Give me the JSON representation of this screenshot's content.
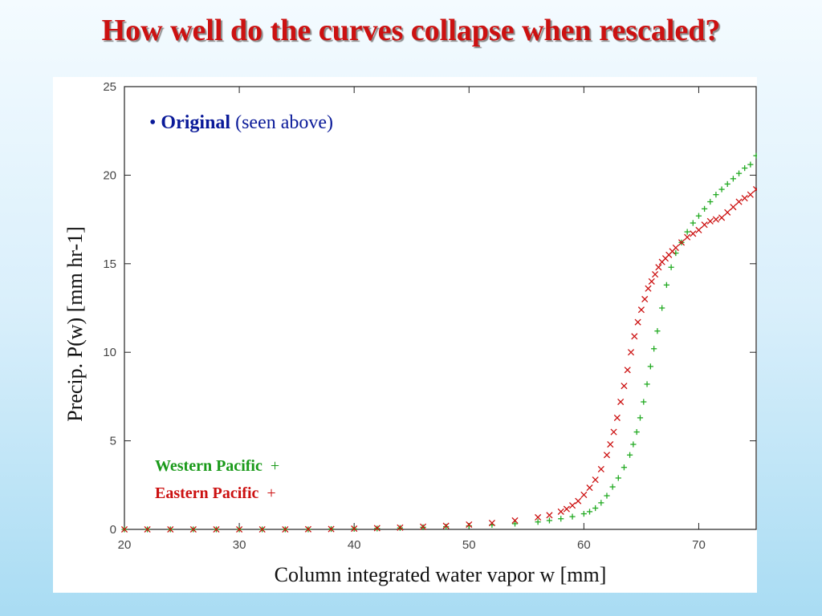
{
  "slide": {
    "title": "How well do the curves collapse when rescaled?"
  },
  "annotation": {
    "bullet": "•",
    "bold_text": "Original",
    "rest_text": " (seen above)"
  },
  "legend": [
    {
      "label": "Western Pacific",
      "marker": "+",
      "color": "#1a9a1a"
    },
    {
      "label": "Eastern Pacific",
      "marker": "+",
      "color": "#cc1111"
    }
  ],
  "chart_data": {
    "type": "scatter",
    "title": "",
    "xlabel": "Column integrated water vapor w [mm]",
    "ylabel": "Precip. P(w) [mm hr-1]",
    "xlim": [
      20,
      75
    ],
    "ylim": [
      0,
      25
    ],
    "xticks": [
      20,
      30,
      40,
      50,
      60,
      70
    ],
    "yticks": [
      0,
      5,
      10,
      15,
      20,
      25
    ],
    "grid": false,
    "legend_position": "bottom-left",
    "series": [
      {
        "name": "Western Pacific",
        "marker": "+",
        "color": "#22aa22",
        "x": [
          20,
          22,
          24,
          26,
          28,
          30,
          32,
          34,
          36,
          38,
          40,
          42,
          44,
          46,
          48,
          50,
          52,
          54,
          56,
          57,
          58,
          59,
          60,
          60.5,
          61,
          61.5,
          62,
          62.5,
          63,
          63.5,
          64,
          64.3,
          64.6,
          64.9,
          65.2,
          65.5,
          65.8,
          66.1,
          66.4,
          66.8,
          67.2,
          67.6,
          68,
          68.5,
          69,
          69.5,
          70,
          70.5,
          71,
          71.5,
          72,
          72.5,
          73,
          73.5,
          74,
          74.5,
          75
        ],
        "y": [
          0,
          0,
          0,
          0,
          0,
          0,
          0,
          0,
          0,
          0.02,
          0.03,
          0.05,
          0.08,
          0.12,
          0.15,
          0.2,
          0.25,
          0.32,
          0.42,
          0.5,
          0.6,
          0.72,
          0.88,
          1.0,
          1.2,
          1.5,
          1.9,
          2.4,
          2.9,
          3.5,
          4.2,
          4.8,
          5.5,
          6.3,
          7.2,
          8.2,
          9.2,
          10.2,
          11.2,
          12.5,
          13.8,
          14.8,
          15.6,
          16.2,
          16.8,
          17.3,
          17.7,
          18.1,
          18.5,
          18.9,
          19.2,
          19.5,
          19.8,
          20.1,
          20.4,
          20.6,
          21.1
        ]
      },
      {
        "name": "Eastern Pacific",
        "marker": "x",
        "color": "#cc1111",
        "x": [
          20,
          22,
          24,
          26,
          28,
          30,
          32,
          34,
          36,
          38,
          40,
          42,
          44,
          46,
          48,
          50,
          52,
          54,
          56,
          57,
          58,
          58.5,
          59,
          59.5,
          60,
          60.5,
          61,
          61.5,
          62,
          62.3,
          62.6,
          62.9,
          63.2,
          63.5,
          63.8,
          64.1,
          64.4,
          64.7,
          65,
          65.3,
          65.6,
          65.9,
          66.2,
          66.5,
          66.8,
          67.1,
          67.4,
          67.7,
          68,
          68.5,
          69,
          69.5,
          70,
          70.5,
          71,
          71.5,
          72,
          72.5,
          73,
          73.5,
          74,
          74.5,
          75
        ],
        "y": [
          0,
          0,
          0,
          0,
          0,
          0,
          0,
          0,
          0.01,
          0.02,
          0.04,
          0.07,
          0.1,
          0.15,
          0.2,
          0.27,
          0.36,
          0.5,
          0.68,
          0.8,
          1.0,
          1.15,
          1.35,
          1.6,
          1.95,
          2.35,
          2.8,
          3.4,
          4.2,
          4.8,
          5.5,
          6.3,
          7.2,
          8.1,
          9.0,
          10.0,
          10.9,
          11.7,
          12.4,
          13.0,
          13.6,
          14.0,
          14.4,
          14.8,
          15.1,
          15.3,
          15.5,
          15.7,
          15.9,
          16.2,
          16.5,
          16.7,
          16.9,
          17.2,
          17.4,
          17.5,
          17.6,
          17.9,
          18.2,
          18.5,
          18.7,
          18.9,
          19.2
        ]
      }
    ]
  }
}
